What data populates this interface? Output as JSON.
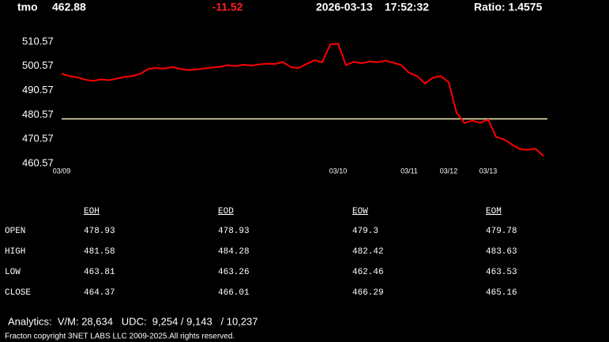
{
  "header": {
    "symbol": "tmo",
    "price": "462.88",
    "change": "-11.52",
    "date": "2026-03-13",
    "time": "17:52:32",
    "ratio": "Ratio: 1.4575"
  },
  "chart_data": {
    "type": "line",
    "categories": [
      "03/09",
      null,
      null,
      null,
      null,
      null,
      null,
      null,
      null,
      null,
      null,
      null,
      null,
      null,
      null,
      null,
      null,
      null,
      null,
      null,
      null,
      null,
      null,
      null,
      null,
      null,
      null,
      null,
      null,
      null,
      null,
      null,
      null,
      null,
      null,
      "03/10",
      null,
      null,
      null,
      null,
      null,
      null,
      null,
      null,
      "03/11",
      null,
      null,
      null,
      null,
      "03/12",
      null,
      null,
      null,
      null,
      "03/13",
      null,
      null,
      null,
      null,
      null,
      null,
      null
    ],
    "series": [
      {
        "name": "tmo",
        "color": "#ff0000",
        "values": [
          497.5,
          496.5,
          496,
          495,
          494.5,
          495.2,
          494.8,
          495.5,
          496.2,
          496.5,
          497.5,
          499.5,
          499.8,
          499.6,
          500.2,
          499.5,
          499,
          499.2,
          499.6,
          500,
          500.3,
          501,
          500.6,
          501.2,
          500.8,
          501.3,
          501.6,
          501.5,
          502.3,
          500.2,
          499.8,
          501.5,
          503,
          502.2,
          509.5,
          509.8,
          501,
          502.4,
          501.8,
          502.5,
          502.2,
          502.8,
          502,
          501,
          497.8,
          496.5,
          493.5,
          495.8,
          496.5,
          494,
          481.5,
          477.2,
          478.2,
          477.3,
          478.6,
          471.5,
          470.5,
          468.4,
          466.5,
          466.2,
          466.6,
          463.6
        ]
      }
    ],
    "reference_line": {
      "value": 478.93,
      "color": "#f3efb8"
    },
    "ylim": [
      460.57,
      510.57
    ],
    "yticks": [
      460.57,
      470.57,
      480.57,
      490.57,
      500.57,
      510.57
    ]
  },
  "table": {
    "columns": [
      "EOH",
      "EOD",
      "EOW",
      "EOM"
    ],
    "rows": [
      [
        "OPEN",
        "478.93",
        "478.93",
        "479.3",
        "479.78"
      ],
      [
        "HIGH",
        "481.58",
        "484.28",
        "482.42",
        "483.63"
      ],
      [
        "LOW",
        "463.81",
        "463.26",
        "462.46",
        "463.53"
      ],
      [
        "CLOSE",
        "464.37",
        "466.01",
        "466.29",
        "465.16"
      ]
    ]
  },
  "footer": {
    "analytics": "Analytics:  V/M: 28,634   UDC:  9,254 / 9,143   / 10,237",
    "copyright": "Fracton copyright 3NET LABS LLC 2009-2025.All rights reserved."
  }
}
